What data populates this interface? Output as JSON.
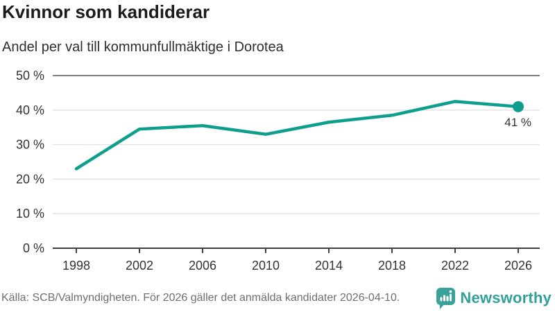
{
  "header": {
    "title": "Kvinnor som kandiderar",
    "subtitle": "Andel per val till kommunfullmäktige i Dorotea"
  },
  "chart_data": {
    "type": "line",
    "title": "Kvinnor som kandiderar",
    "subtitle": "Andel per val till kommunfullmäktige i Dorotea",
    "x": [
      1998,
      2002,
      2006,
      2010,
      2014,
      2018,
      2022,
      2026
    ],
    "values": [
      23,
      34.5,
      35.5,
      33,
      36.5,
      38.5,
      42.5,
      41
    ],
    "unit": "%",
    "ylim": [
      0,
      50
    ],
    "yticks": [
      {
        "value": 0,
        "label": "0 %"
      },
      {
        "value": 10,
        "label": "10 %"
      },
      {
        "value": 20,
        "label": "20 %"
      },
      {
        "value": 30,
        "label": "30 %"
      },
      {
        "value": 40,
        "label": "40 %"
      },
      {
        "value": 50,
        "label": "50 %"
      }
    ],
    "grid": "horizontal",
    "legend": "none",
    "end_label": "41 %",
    "line_color": "#0d9e8d",
    "marker_color": "#0d9e8d",
    "axis_color": "#404040",
    "top_grid_color": "#808080",
    "grid_color": "#e2e2e2",
    "tick_label_color": "#333333"
  },
  "footer": {
    "source": "Källa: SCB/Valmyndigheten. För 2026 gäller det anmälda kandidater 2026-04-10.",
    "brand": "Newsworthy"
  },
  "colors": {
    "accent_teal": "#0d9e8d",
    "logo_teal": "#3aa29b",
    "brand_text_teal": "#31a09a",
    "text_dark": "#1b1b1b",
    "text_gray": "#6e6e73"
  }
}
